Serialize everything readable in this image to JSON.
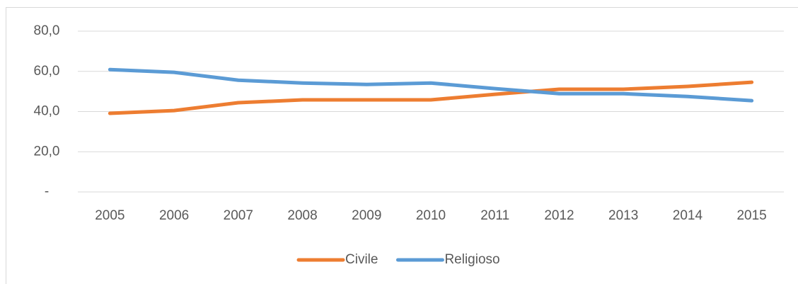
{
  "chart_data": {
    "type": "line",
    "categories": [
      "2005",
      "2006",
      "2007",
      "2008",
      "2009",
      "2010",
      "2011",
      "2012",
      "2013",
      "2014",
      "2015"
    ],
    "series": [
      {
        "name": "Civile",
        "color": "#ed7d31",
        "values": [
          39.1,
          40.5,
          44.4,
          45.8,
          45.8,
          45.8,
          48.6,
          51.1,
          51.1,
          52.5,
          54.6
        ]
      },
      {
        "name": "Religioso",
        "color": "#5b9bd5",
        "values": [
          60.9,
          59.5,
          55.6,
          54.2,
          53.5,
          54.2,
          51.4,
          48.9,
          48.9,
          47.5,
          45.4
        ]
      }
    ],
    "ylim": [
      0,
      80
    ],
    "yticks": [
      {
        "value": 0,
        "label": "-"
      },
      {
        "value": 20,
        "label": "20,0"
      },
      {
        "value": 40,
        "label": "40,0"
      },
      {
        "value": 60,
        "label": "60,0"
      },
      {
        "value": 80,
        "label": "80,0"
      }
    ],
    "grid": true,
    "legend": "bottom"
  }
}
